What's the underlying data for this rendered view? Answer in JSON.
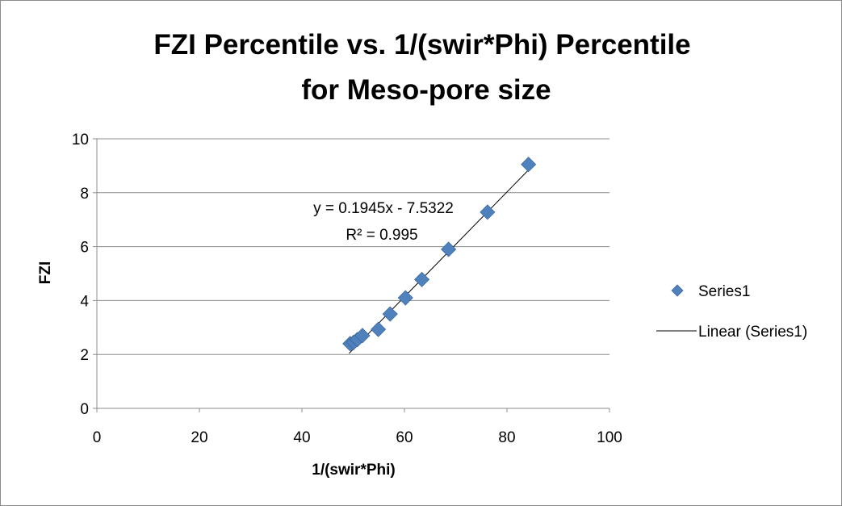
{
  "chart_data": {
    "type": "scatter",
    "title_lines": [
      "FZI Percentile vs. 1/(swir*Phi) Percentile",
      "for Meso-pore size"
    ],
    "xlabel": "1/(swir*Phi)",
    "ylabel": "FZI",
    "xlim": [
      0,
      100
    ],
    "ylim": [
      0,
      10
    ],
    "x_ticks": [
      0,
      20,
      40,
      60,
      80,
      100
    ],
    "y_ticks": [
      0,
      2,
      4,
      6,
      8,
      10
    ],
    "grid": "horizontal",
    "series": [
      {
        "name": "Series1",
        "color": "#4f81bd",
        "marker": "diamond",
        "points": [
          {
            "x": 49.4,
            "y": 2.4
          },
          {
            "x": 50.1,
            "y": 2.45
          },
          {
            "x": 50.8,
            "y": 2.55
          },
          {
            "x": 51.8,
            "y": 2.7
          },
          {
            "x": 54.9,
            "y": 2.93
          },
          {
            "x": 57.2,
            "y": 3.5
          },
          {
            "x": 60.2,
            "y": 4.1
          },
          {
            "x": 63.4,
            "y": 4.78
          },
          {
            "x": 68.6,
            "y": 5.9
          },
          {
            "x": 76.2,
            "y": 7.28
          },
          {
            "x": 84.2,
            "y": 9.05
          }
        ]
      }
    ],
    "trendline": {
      "name": "Linear (Series1)",
      "slope": 0.1945,
      "intercept": -7.5322,
      "x_range": [
        49.2,
        84.6
      ],
      "color": "#000000",
      "equation_label": "y = 0.1945x - 7.5322",
      "r2_label": "R² = 0.995"
    },
    "legend": {
      "placement": "right",
      "entries": [
        "Series1",
        "Linear (Series1)"
      ]
    }
  }
}
